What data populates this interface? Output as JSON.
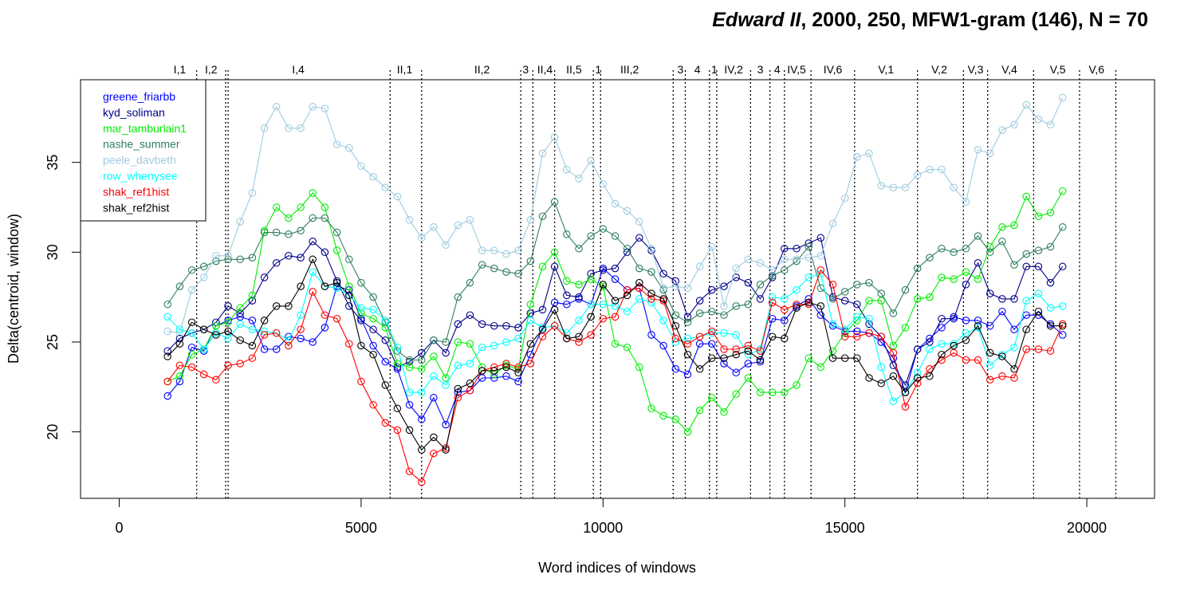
{
  "chart_data": {
    "type": "line",
    "title_italic": "Edward II",
    "title_rest": ", 2000, 250, MFW1-gram (146), N = 70",
    "xlabel": "Word indices of windows",
    "ylabel": "Delta(centroid, window)",
    "xlim": [
      -800,
      21400
    ],
    "ylim": [
      16.3,
      39.6
    ],
    "x_ticks": [
      0,
      5000,
      10000,
      15000,
      20000
    ],
    "x_tick_labels": [
      "0",
      "5000",
      "10000",
      "15000",
      "20000"
    ],
    "y_ticks": [
      20,
      25,
      30,
      35
    ],
    "y_tick_labels": [
      "20",
      "25",
      "30",
      "35"
    ],
    "legend_position": "top-left",
    "x": [
      1000,
      1250,
      1500,
      1750,
      2000,
      2250,
      2500,
      2750,
      3000,
      3250,
      3500,
      3750,
      4000,
      4250,
      4500,
      4750,
      5000,
      5250,
      5500,
      5750,
      6000,
      6250,
      6500,
      6750,
      7000,
      7250,
      7500,
      7750,
      8000,
      8250,
      8500,
      8750,
      9000,
      9250,
      9500,
      9750,
      10000,
      10250,
      10500,
      10750,
      11000,
      11250,
      11500,
      11750,
      12000,
      12250,
      12500,
      12750,
      13000,
      13250,
      13500,
      13750,
      14000,
      14250,
      14500,
      14750,
      15000,
      15250,
      15500,
      15750,
      16000,
      16250,
      16500,
      16750,
      17000,
      17250,
      17500,
      17750,
      18000,
      18250,
      18500,
      18750,
      19000,
      19250,
      19500
    ],
    "series": [
      {
        "name": "greene_friarbb",
        "color": "#0000ff",
        "values": [
          22.0,
          22.8,
          24.7,
          24.5,
          25.9,
          26.2,
          26.4,
          26.2,
          24.6,
          24.6,
          25.3,
          25.2,
          25.0,
          25.8,
          28.1,
          27.9,
          26.3,
          24.8,
          23.9,
          23.5,
          21.5,
          20.7,
          21.9,
          20.4,
          22.2,
          22.3,
          23.0,
          23.0,
          23.1,
          22.8,
          24.3,
          25.8,
          27.2,
          27.1,
          27.4,
          27.1,
          29.1,
          28.5,
          27.9,
          28.0,
          25.4,
          24.8,
          23.5,
          23.2,
          24.9,
          24.9,
          23.8,
          23.3,
          23.8,
          23.9,
          26.3,
          26.2,
          27.0,
          27.4,
          26.5,
          25.9,
          25.6,
          25.6,
          25.5,
          25.0,
          24.1,
          22.2,
          24.6,
          25.2,
          25.8,
          26.4,
          26.2,
          26.2,
          25.9,
          26.7,
          25.7,
          26.5,
          26.5,
          26.0,
          25.4
        ]
      },
      {
        "name": "kyd_soliman",
        "color": "#00008b",
        "values": [
          24.5,
          25.2,
          25.5,
          25.7,
          26.1,
          27.0,
          26.6,
          27.3,
          28.6,
          29.4,
          29.8,
          29.7,
          30.6,
          30.0,
          28.4,
          27.0,
          26.2,
          25.7,
          25.1,
          23.6,
          23.9,
          24.4,
          25.1,
          24.4,
          26.0,
          26.5,
          26.0,
          25.9,
          25.9,
          25.8,
          26.6,
          26.8,
          29.2,
          27.6,
          27.5,
          28.8,
          29.0,
          29.1,
          30.0,
          30.8,
          30.1,
          28.8,
          28.4,
          26.4,
          27.3,
          27.9,
          28.1,
          28.6,
          28.3,
          27.4,
          28.6,
          30.2,
          30.2,
          30.5,
          30.8,
          27.5,
          27.3,
          27.1,
          26.0,
          25.3,
          23.7,
          22.6,
          24.6,
          25.0,
          26.3,
          26.3,
          28.2,
          29.4,
          27.7,
          27.4,
          27.4,
          29.2,
          29.2,
          28.3,
          29.2
        ]
      },
      {
        "name": "mar_tamburlain1",
        "color": "#00ee00",
        "values": [
          22.8,
          23.1,
          24.3,
          24.6,
          25.9,
          26.1,
          26.9,
          27.6,
          31.2,
          32.5,
          31.9,
          32.5,
          33.3,
          32.5,
          30.1,
          28.1,
          26.6,
          26.3,
          25.8,
          23.8,
          23.6,
          23.5,
          24.2,
          23.0,
          25.0,
          24.9,
          23.6,
          23.2,
          23.7,
          23.5,
          27.1,
          29.2,
          30.0,
          28.4,
          28.2,
          28.5,
          28.1,
          24.9,
          24.7,
          23.6,
          21.3,
          20.9,
          20.7,
          20.0,
          21.2,
          21.9,
          21.1,
          22.1,
          23.0,
          22.2,
          22.2,
          22.2,
          22.6,
          24.1,
          23.6,
          24.5,
          25.5,
          26.2,
          27.3,
          27.3,
          24.8,
          25.8,
          27.4,
          27.5,
          28.6,
          28.5,
          28.9,
          28.5,
          30.3,
          31.4,
          31.5,
          33.1,
          32.0,
          32.2,
          33.4
        ]
      },
      {
        "name": "nashe_summer",
        "color": "#2f7f5f",
        "values": [
          27.1,
          28.1,
          29.0,
          29.2,
          29.5,
          29.6,
          29.6,
          29.7,
          31.1,
          31.1,
          31.0,
          31.2,
          31.9,
          31.9,
          31.1,
          29.6,
          28.3,
          27.5,
          26.1,
          24.5,
          24.0,
          24.0,
          25.1,
          25.0,
          27.5,
          28.3,
          29.3,
          29.1,
          28.9,
          28.8,
          29.5,
          32.0,
          32.8,
          31.0,
          30.2,
          30.9,
          31.3,
          30.9,
          30.2,
          29.1,
          28.9,
          27.9,
          26.5,
          26.1,
          26.6,
          26.7,
          26.5,
          27.0,
          27.1,
          28.2,
          28.7,
          29.0,
          29.5,
          30.3,
          28.0,
          27.4,
          27.8,
          28.2,
          28.3,
          27.7,
          26.6,
          27.9,
          29.1,
          29.7,
          30.2,
          30.0,
          30.2,
          30.9,
          30.0,
          30.6,
          29.3,
          29.9,
          30.1,
          30.3,
          31.4
        ]
      },
      {
        "name": "peele_davbeth",
        "color": "#9ecbe0",
        "values": [
          25.6,
          25.5,
          27.9,
          28.6,
          29.8,
          29.8,
          31.7,
          33.3,
          36.9,
          38.1,
          36.9,
          36.9,
          38.1,
          38.0,
          36.0,
          35.8,
          34.8,
          34.2,
          33.6,
          33.1,
          31.8,
          30.8,
          31.4,
          30.4,
          31.5,
          31.8,
          30.1,
          30.1,
          29.9,
          30.1,
          31.8,
          35.5,
          36.4,
          34.6,
          34.1,
          35.1,
          33.8,
          32.7,
          32.3,
          31.7,
          30.2,
          28.0,
          28.1,
          28.0,
          29.2,
          30.3,
          27.0,
          29.1,
          29.6,
          29.4,
          29.0,
          29.6,
          29.6,
          29.7,
          29.8,
          31.6,
          33.0,
          35.3,
          35.5,
          33.7,
          33.6,
          33.6,
          34.3,
          34.6,
          34.6,
          33.6,
          32.8,
          35.7,
          35.5,
          36.8,
          37.1,
          38.2,
          37.4,
          37.1,
          38.6
        ]
      },
      {
        "name": "row_whenysee",
        "color": "#00ffff",
        "values": [
          26.4,
          25.7,
          25.5,
          24.6,
          25.5,
          25.2,
          26.0,
          25.7,
          25.6,
          25.5,
          25.1,
          26.5,
          28.9,
          28.1,
          28.0,
          27.6,
          26.9,
          26.8,
          26.2,
          24.7,
          22.2,
          22.2,
          23.1,
          22.6,
          23.7,
          23.8,
          24.7,
          24.8,
          25.0,
          25.2,
          26.2,
          25.8,
          25.9,
          25.5,
          26.2,
          27.1,
          27.1,
          27.0,
          26.7,
          27.4,
          27.2,
          26.2,
          25.0,
          25.2,
          25.3,
          25.5,
          25.5,
          25.4,
          24.3,
          24.6,
          27.5,
          27.4,
          27.9,
          28.6,
          28.8,
          26.0,
          25.7,
          26.4,
          26.3,
          23.6,
          21.7,
          22.2,
          23.3,
          24.6,
          24.9,
          24.9,
          25.5,
          25.8,
          23.7,
          24.3,
          24.7,
          27.3,
          27.7,
          26.9,
          27.0
        ]
      },
      {
        "name": "shak_ref1hist",
        "color": "#ff0000",
        "values": [
          22.8,
          23.7,
          23.6,
          23.2,
          22.9,
          23.7,
          23.8,
          24.1,
          25.4,
          25.5,
          24.8,
          25.7,
          27.8,
          26.5,
          26.3,
          24.9,
          22.8,
          21.5,
          20.5,
          20.1,
          17.8,
          17.2,
          18.8,
          19.1,
          21.9,
          22.3,
          23.4,
          23.6,
          23.8,
          23.6,
          23.8,
          25.3,
          25.9,
          25.2,
          25.0,
          25.4,
          26.3,
          26.4,
          27.9,
          28.0,
          27.4,
          27.3,
          25.2,
          24.9,
          25.3,
          25.6,
          24.6,
          24.6,
          24.8,
          24.5,
          27.2,
          26.8,
          27.1,
          27.1,
          29.0,
          28.2,
          25.3,
          25.3,
          25.5,
          25.3,
          24.4,
          21.4,
          22.7,
          23.5,
          24.0,
          24.4,
          24.0,
          24.0,
          22.9,
          23.1,
          23.0,
          24.6,
          24.6,
          24.5,
          26.0
        ]
      },
      {
        "name": "shak_ref2hist",
        "color": "#000000",
        "values": [
          24.2,
          24.9,
          26.1,
          25.7,
          25.4,
          25.6,
          25.1,
          24.8,
          26.2,
          27.0,
          27.0,
          28.1,
          29.6,
          28.1,
          28.3,
          27.6,
          24.8,
          24.3,
          22.6,
          21.3,
          20.1,
          19.0,
          19.7,
          19.0,
          22.4,
          22.7,
          23.4,
          23.4,
          23.6,
          23.3,
          24.9,
          25.7,
          26.8,
          25.2,
          25.3,
          26.4,
          28.2,
          27.3,
          27.6,
          28.3,
          27.7,
          27.4,
          25.9,
          24.3,
          23.5,
          24.1,
          24.1,
          24.3,
          24.5,
          24.0,
          25.3,
          25.2,
          26.9,
          27.2,
          27.0,
          24.1,
          24.1,
          24.1,
          23.0,
          22.7,
          23.1,
          22.2,
          23.0,
          23.1,
          24.3,
          24.8,
          25.1,
          25.9,
          24.4,
          24.2,
          23.5,
          25.7,
          26.7,
          25.9,
          25.9
        ]
      }
    ],
    "scene_boundaries": [
      1600,
      2200,
      2250,
      5600,
      6250,
      8300,
      8550,
      9000,
      9800,
      9950,
      11450,
      11700,
      12200,
      12350,
      13050,
      13450,
      13750,
      14300,
      15200,
      16500,
      17450,
      17950,
      18900,
      19850,
      20600
    ],
    "scene_labels": [
      {
        "label": "I,1",
        "x": 1250
      },
      {
        "label": "I,2",
        "x": 1900
      },
      {
        "label": "I,4",
        "x": 3700
      },
      {
        "label": "II,1",
        "x": 5900
      },
      {
        "label": "II,2",
        "x": 7500
      },
      {
        "label": "3",
        "x": 8400
      },
      {
        "label": "II,4",
        "x": 8800
      },
      {
        "label": "II,5",
        "x": 9400
      },
      {
        "label": "1",
        "x": 9900
      },
      {
        "label": "III,2",
        "x": 10550
      },
      {
        "label": "3",
        "x": 11600
      },
      {
        "label": "4",
        "x": 11950
      },
      {
        "label": "1",
        "x": 12300
      },
      {
        "label": "IV,2",
        "x": 12700
      },
      {
        "label": "3",
        "x": 13250
      },
      {
        "label": "4",
        "x": 13600
      },
      {
        "label": "IV,5",
        "x": 14000
      },
      {
        "label": "IV,6",
        "x": 14750
      },
      {
        "label": "V,1",
        "x": 15850
      },
      {
        "label": "V,2",
        "x": 16950
      },
      {
        "label": "V,3",
        "x": 17700
      },
      {
        "label": "V,4",
        "x": 18400
      },
      {
        "label": "V,5",
        "x": 19400
      },
      {
        "label": "V,6",
        "x": 20200
      }
    ]
  }
}
